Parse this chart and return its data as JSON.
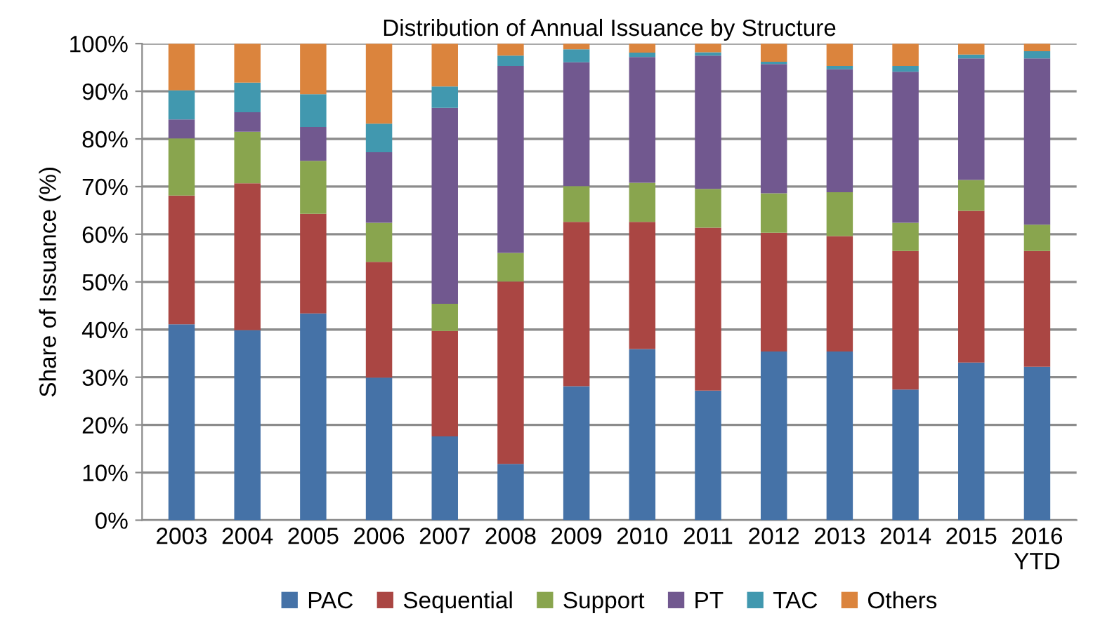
{
  "chart_data": {
    "type": "bar",
    "stacked": true,
    "title": "Distribution of Annual Issuance by Structure",
    "ylabel": "Share of Issuance (%)",
    "categories": [
      "2003",
      "2004",
      "2005",
      "2006",
      "2007",
      "2008",
      "2009",
      "2010",
      "2011",
      "2012",
      "2013",
      "2014",
      "2015",
      "2016\nYTD"
    ],
    "series": [
      {
        "name": "PAC",
        "color": "#4572a7",
        "values": [
          41.1,
          39.9,
          43.4,
          29.9,
          17.6,
          11.8,
          28.1,
          35.9,
          27.2,
          35.4,
          35.4,
          27.4,
          33.1,
          32.2
        ]
      },
      {
        "name": "Sequential",
        "color": "#aa4643",
        "values": [
          27.0,
          30.8,
          20.9,
          24.3,
          22.1,
          38.3,
          34.5,
          26.7,
          34.2,
          24.9,
          24.2,
          29.1,
          31.8,
          24.3
        ]
      },
      {
        "name": "Support",
        "color": "#89a54e",
        "values": [
          12.0,
          10.8,
          11.1,
          8.2,
          5.7,
          6.0,
          7.5,
          8.2,
          8.1,
          8.3,
          9.2,
          5.9,
          6.5,
          5.5
        ]
      },
      {
        "name": "PT",
        "color": "#71588f",
        "values": [
          4.0,
          4.1,
          7.1,
          14.8,
          41.1,
          39.2,
          26.0,
          26.4,
          28.0,
          27.1,
          25.8,
          31.7,
          25.5,
          34.9
        ]
      },
      {
        "name": "TAC",
        "color": "#4198af",
        "values": [
          6.1,
          6.2,
          6.9,
          6.0,
          4.5,
          2.2,
          2.7,
          0.9,
          0.7,
          0.5,
          0.7,
          1.2,
          0.8,
          1.5
        ]
      },
      {
        "name": "Others",
        "color": "#db843d",
        "values": [
          9.8,
          8.2,
          10.6,
          16.8,
          9.0,
          2.5,
          1.2,
          1.9,
          1.8,
          3.8,
          4.7,
          4.7,
          2.3,
          1.6
        ]
      }
    ],
    "ylim": [
      0,
      100
    ],
    "yticks": [
      {
        "value": 0,
        "label": "0%"
      },
      {
        "value": 10,
        "label": "10%"
      },
      {
        "value": 20,
        "label": "20%"
      },
      {
        "value": 30,
        "label": "30%"
      },
      {
        "value": 40,
        "label": "40%"
      },
      {
        "value": 50,
        "label": "50%"
      },
      {
        "value": 60,
        "label": "60%"
      },
      {
        "value": 70,
        "label": "70%"
      },
      {
        "value": 80,
        "label": "80%"
      },
      {
        "value": 90,
        "label": "90%"
      },
      {
        "value": 100,
        "label": "100%"
      }
    ],
    "grid": "y",
    "legend": "bottom"
  }
}
